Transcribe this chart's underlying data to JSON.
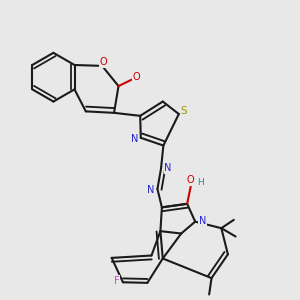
{
  "bg_color": "#e8e8e8",
  "bond_color": "#1a1a1a",
  "bond_width": 1.5,
  "figsize": [
    3.0,
    3.0
  ],
  "dpi": 100,
  "colors": {
    "O": "#cc0000",
    "N": "#2222cc",
    "S": "#999900",
    "F": "#cc44cc",
    "H": "#338888",
    "C": "#1a1a1a"
  }
}
